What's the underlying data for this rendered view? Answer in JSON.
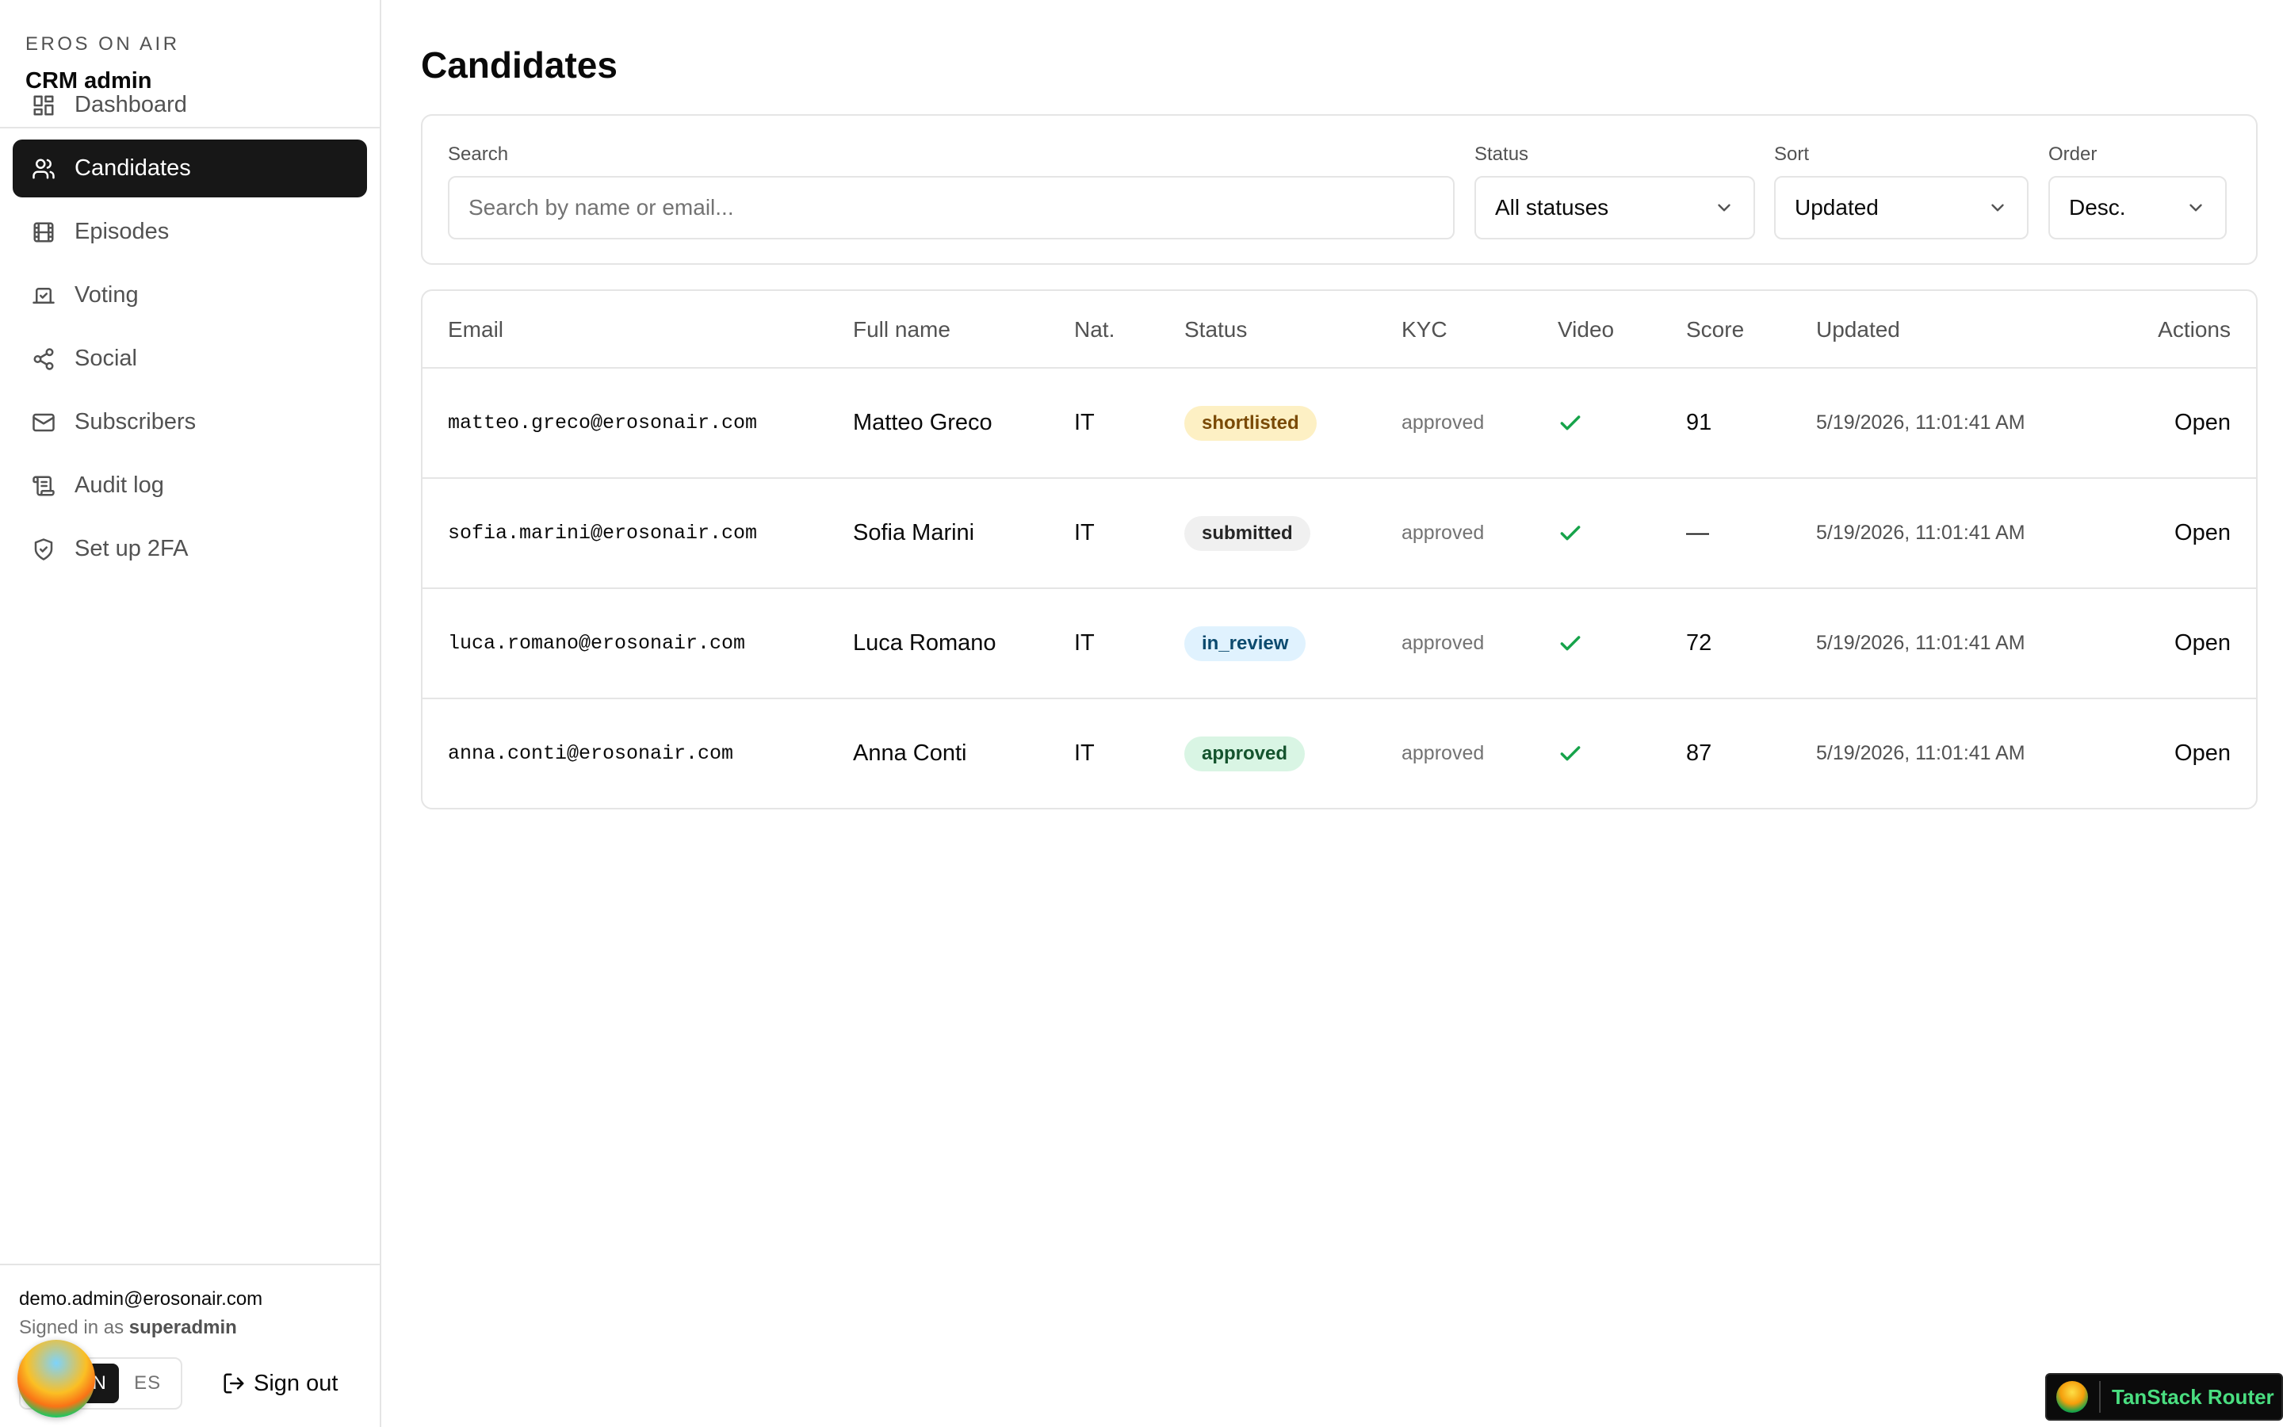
{
  "sidebar": {
    "org": "EROS ON AIR",
    "app": "CRM admin",
    "nav": [
      {
        "label": "Dashboard",
        "icon": "dashboard-icon",
        "active": false
      },
      {
        "label": "Candidates",
        "icon": "users-icon",
        "active": true
      },
      {
        "label": "Episodes",
        "icon": "film-icon",
        "active": false
      },
      {
        "label": "Voting",
        "icon": "vote-icon",
        "active": false
      },
      {
        "label": "Social",
        "icon": "share-icon",
        "active": false
      },
      {
        "label": "Subscribers",
        "icon": "mail-icon",
        "active": false
      },
      {
        "label": "Audit log",
        "icon": "scroll-icon",
        "active": false
      },
      {
        "label": "Set up 2FA",
        "icon": "shield-check-icon",
        "active": false
      }
    ],
    "user": {
      "email": "demo.admin@erosonair.com",
      "signed_in_prefix": "Signed in as",
      "role": "superadmin"
    },
    "lang": {
      "en": "EN",
      "es": "ES",
      "active": "EN"
    },
    "sign_out": "Sign out"
  },
  "main": {
    "title": "Candidates",
    "filters": {
      "search_label": "Search",
      "search_placeholder": "Search by name or email...",
      "status_label": "Status",
      "status_value": "All statuses",
      "sort_label": "Sort",
      "sort_value": "Updated",
      "order_label": "Order",
      "order_value": "Desc."
    },
    "table": {
      "headers": [
        "Email",
        "Full name",
        "Nat.",
        "Status",
        "KYC",
        "Video",
        "Score",
        "Updated",
        "Actions"
      ],
      "rows": [
        {
          "email": "matteo.greco@erosonair.com",
          "name": "Matteo Greco",
          "nat": "IT",
          "status": "shortlisted",
          "kyc": "approved",
          "video": true,
          "score": "91",
          "updated": "5/19/2026, 11:01:41 AM",
          "action": "Open"
        },
        {
          "email": "sofia.marini@erosonair.com",
          "name": "Sofia Marini",
          "nat": "IT",
          "status": "submitted",
          "kyc": "approved",
          "video": true,
          "score": "—",
          "updated": "5/19/2026, 11:01:41 AM",
          "action": "Open"
        },
        {
          "email": "luca.romano@erosonair.com",
          "name": "Luca Romano",
          "nat": "IT",
          "status": "in_review",
          "kyc": "approved",
          "video": true,
          "score": "72",
          "updated": "5/19/2026, 11:01:41 AM",
          "action": "Open"
        },
        {
          "email": "anna.conti@erosonair.com",
          "name": "Anna Conti",
          "nat": "IT",
          "status": "approved",
          "kyc": "approved",
          "video": true,
          "score": "87",
          "updated": "5/19/2026, 11:01:41 AM",
          "action": "Open"
        }
      ]
    },
    "status_colors": {
      "shortlisted": {
        "bg": "#fdf0c4",
        "fg": "#7a4a06"
      },
      "submitted": {
        "bg": "#f0f0f0",
        "fg": "#262626"
      },
      "in_review": {
        "bg": "#e0f2fe",
        "fg": "#0c4a6e"
      },
      "approved": {
        "bg": "#d9f5e4",
        "fg": "#14532d"
      }
    }
  },
  "devtools": {
    "label": "TanStack Router"
  }
}
